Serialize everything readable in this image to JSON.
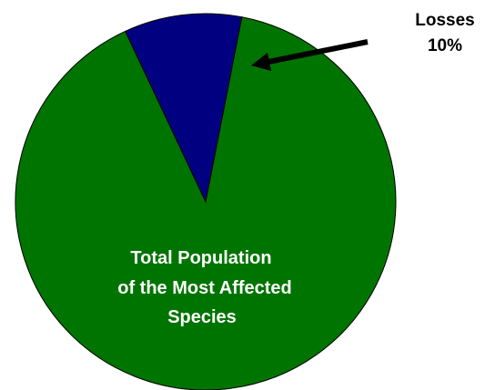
{
  "chart_data": {
    "type": "pie",
    "slices": [
      {
        "label": "Losses",
        "display_value": "10%",
        "value": 10,
        "color": "#000080"
      },
      {
        "label": "Total Population of the Most Affected Species",
        "label_lines": [
          "Total Population",
          "of the Most Affected",
          "Species"
        ],
        "value": 90,
        "color": "#007400"
      }
    ],
    "outline_color": "#000000",
    "label_color_inside": "#ffffff",
    "label_color_outside": "#000000"
  }
}
